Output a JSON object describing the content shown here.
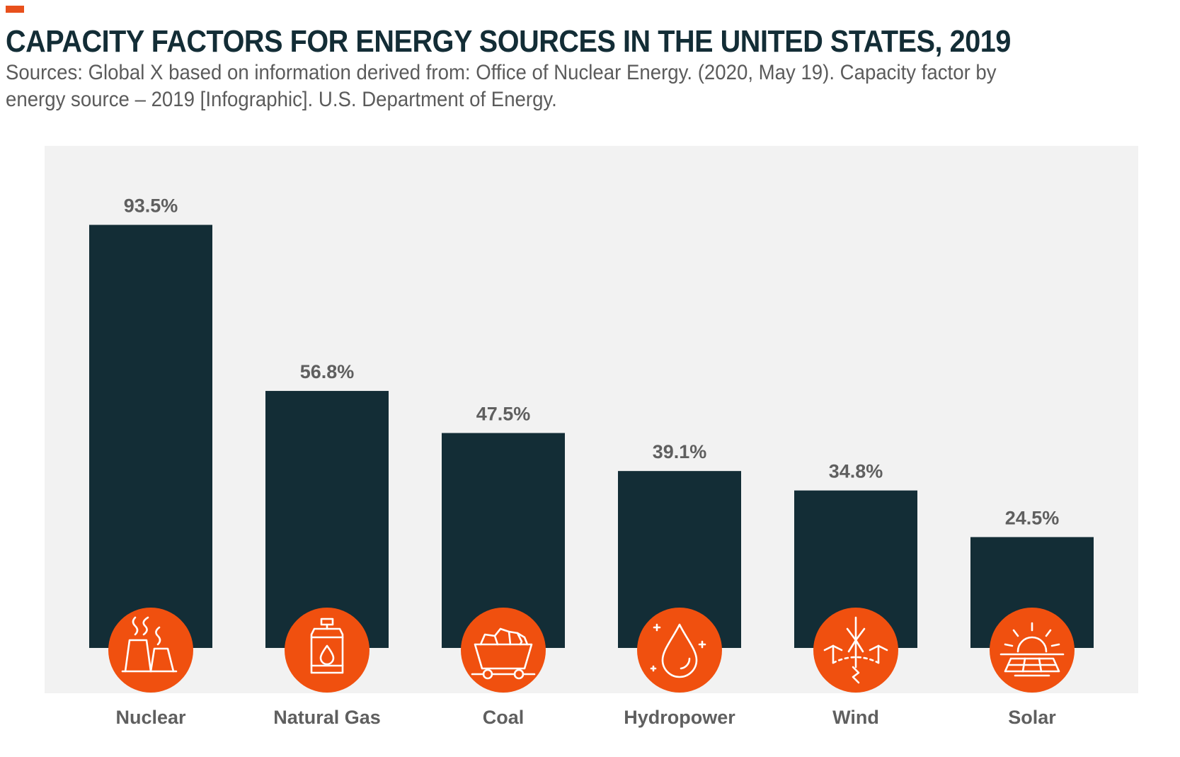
{
  "header": {
    "title": "CAPACITY FACTORS FOR ENERGY SOURCES IN THE UNITED STATES, 2019",
    "subtitle": "Sources: Global X based on information derived from: Office of Nuclear Energy. (2020, May 19). Capacity factor by energy source – 2019 [Infographic]. U.S. Department of Energy."
  },
  "colors": {
    "accent": "#e8501c",
    "bar": "#132d36",
    "plot_background": "#f2f2f2",
    "icon_circle": "#f0500f",
    "text": "#5f5f5f"
  },
  "chart_data": {
    "type": "bar",
    "title": "CAPACITY FACTORS FOR ENERGY SOURCES IN THE UNITED STATES, 2019",
    "categories": [
      "Nuclear",
      "Natural Gas",
      "Coal",
      "Hydropower",
      "Wind",
      "Solar"
    ],
    "values": [
      93.5,
      56.8,
      47.5,
      39.1,
      34.8,
      24.5
    ],
    "value_labels": [
      "93.5%",
      "56.8%",
      "47.5%",
      "39.1%",
      "34.8%",
      "24.5%"
    ],
    "icons": [
      "nuclear-plant-icon",
      "gas-cylinder-icon",
      "coal-cart-icon",
      "water-drop-icon",
      "wind-turbine-icon",
      "solar-panel-icon"
    ],
    "unit": "%",
    "ylim": [
      0,
      100
    ],
    "grid": false,
    "legend": "none"
  }
}
